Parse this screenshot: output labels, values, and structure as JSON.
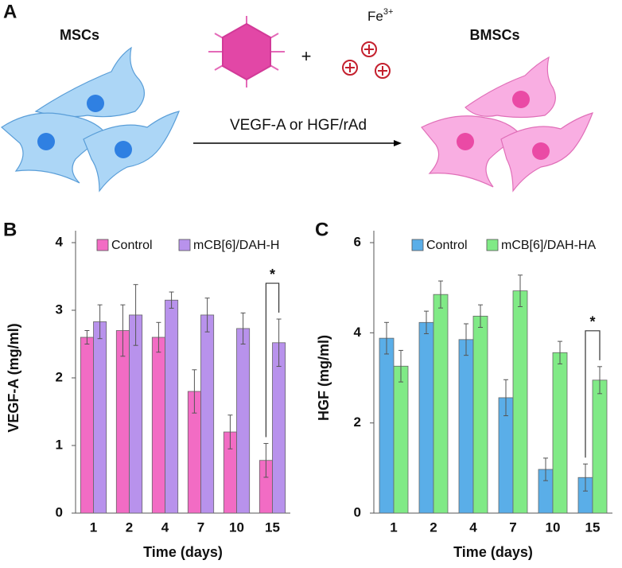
{
  "panel_a": {
    "label": "A",
    "left_cells": "MSCs",
    "right_cells": "BMSCs",
    "ion": "Fe",
    "ion_charge": "3+",
    "plus": "+",
    "arrow_label": "VEGF-A or HGF/rAd"
  },
  "chart_data": [
    {
      "type": "bar",
      "panel": "B",
      "x_label": "Time (days)",
      "y_label": "VEGF-A (mg/ml)",
      "categories": [
        "1",
        "2",
        "4",
        "7",
        "10",
        "15"
      ],
      "series": [
        {
          "name": "Control",
          "color": "#f26cc4",
          "values": [
            2.6,
            2.7,
            2.6,
            1.8,
            1.2,
            0.78
          ],
          "errors": [
            0.1,
            0.38,
            0.22,
            0.32,
            0.25,
            0.25
          ]
        },
        {
          "name": "mCB[6]/DAH-H",
          "color": "#b892ec",
          "values": [
            2.83,
            2.93,
            3.15,
            2.93,
            2.73,
            2.52
          ],
          "errors": [
            0.25,
            0.45,
            0.12,
            0.25,
            0.23,
            0.35
          ]
        }
      ],
      "ylim": [
        0,
        4
      ],
      "yticks": [
        0,
        1,
        2,
        3,
        4
      ],
      "annotations": [
        "*"
      ]
    },
    {
      "type": "bar",
      "panel": "C",
      "x_label": "Time (days)",
      "y_label": "HGF (mg/ml)",
      "categories": [
        "1",
        "2",
        "4",
        "7",
        "10",
        "15"
      ],
      "series": [
        {
          "name": "Control",
          "color": "#5aaee8",
          "values": [
            3.88,
            4.23,
            3.85,
            2.56,
            0.97,
            0.79
          ],
          "errors": [
            0.35,
            0.25,
            0.35,
            0.4,
            0.25,
            0.3
          ]
        },
        {
          "name": "mCB[6]/DAH-HA",
          "color": "#80ea86",
          "values": [
            3.26,
            4.85,
            4.37,
            4.93,
            3.56,
            2.95
          ],
          "errors": [
            0.35,
            0.3,
            0.25,
            0.35,
            0.25,
            0.3
          ]
        }
      ],
      "ylim": [
        0,
        6
      ],
      "yticks": [
        0,
        2,
        4,
        6
      ],
      "annotations": [
        "*"
      ]
    }
  ]
}
